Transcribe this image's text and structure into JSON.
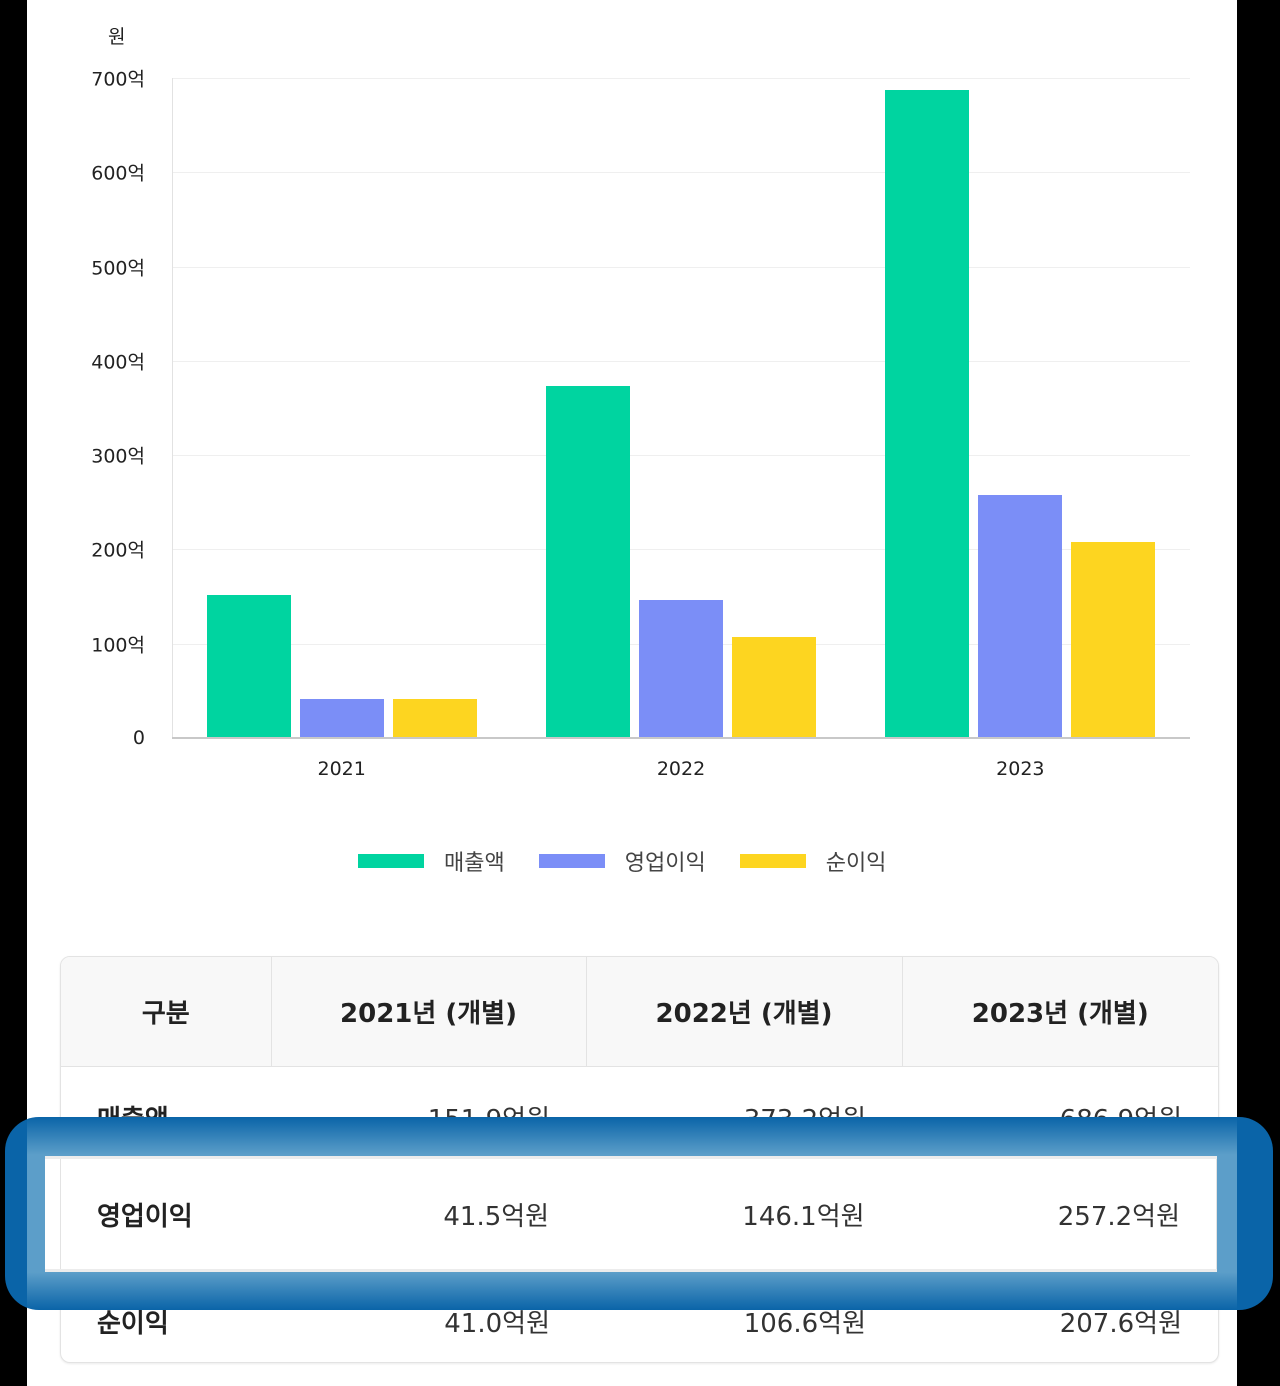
{
  "chart_data": {
    "type": "bar",
    "title": "",
    "unit_label": "원",
    "xlabel": "",
    "ylabel": "원",
    "categories": [
      "2021",
      "2022",
      "2023"
    ],
    "series": [
      {
        "name": "매출액",
        "color": "#00D4A0",
        "values": [
          151.9,
          373.2,
          686.9
        ]
      },
      {
        "name": "영업이익",
        "color": "#7B8EF7",
        "values": [
          41.5,
          146.1,
          257.2
        ]
      },
      {
        "name": "순이익",
        "color": "#FDD520",
        "values": [
          41.0,
          106.6,
          207.6
        ]
      }
    ],
    "value_unit": "억원",
    "ylim": [
      0,
      700
    ],
    "yticks": [
      "0",
      "100억",
      "200억",
      "300억",
      "400억",
      "500억",
      "600억",
      "700억"
    ],
    "grid": true,
    "legend_position": "bottom"
  },
  "table": {
    "headers": [
      "구분",
      "2021년 (개별)",
      "2022년 (개별)",
      "2023년 (개별)"
    ],
    "rows": [
      {
        "label": "매출액",
        "values": [
          "151.9억원",
          "373.2억원",
          "686.9억원"
        ]
      },
      {
        "label": "영업이익",
        "values": [
          "41.5억원",
          "146.1억원",
          "257.2억원"
        ]
      },
      {
        "label": "순이익",
        "values": [
          "41.0억원",
          "106.6억원",
          "207.6억원"
        ]
      }
    ],
    "highlighted_row": "영업이익",
    "highlight_color": "#0A64A8"
  }
}
